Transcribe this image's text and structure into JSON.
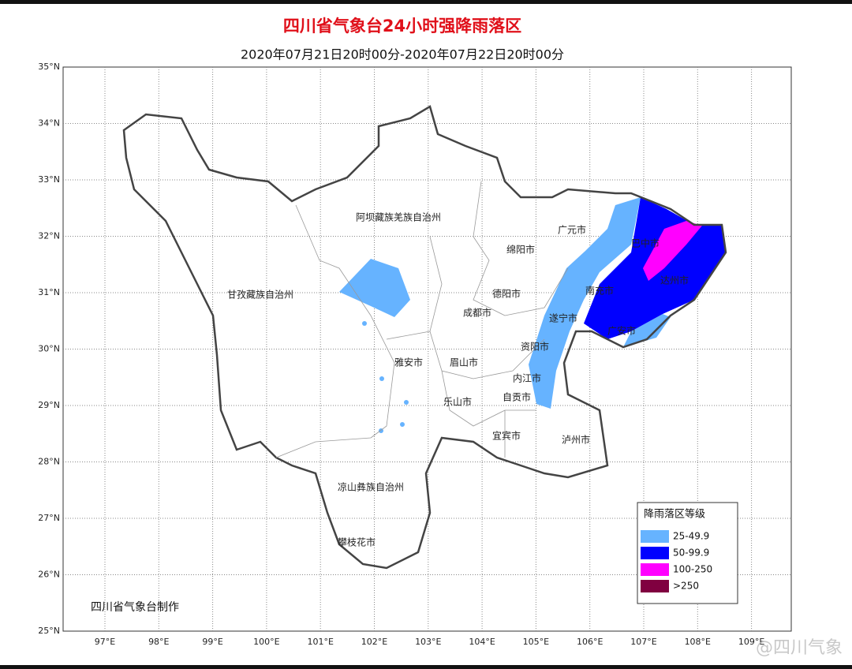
{
  "header": {
    "title": "四川省气象台24小时强降雨落区",
    "subtitle": "2020年07月21日20时00分-2020年07月22日20时00分"
  },
  "map": {
    "lat_labels": [
      "35°N",
      "34°N",
      "33°N",
      "32°N",
      "31°N",
      "30°N",
      "29°N",
      "28°N",
      "27°N",
      "26°N",
      "25°N"
    ],
    "lon_labels": [
      "97°E",
      "98°E",
      "99°E",
      "100°E",
      "101°E",
      "102°E",
      "103°E",
      "104°E",
      "105°E",
      "106°E",
      "107°E",
      "108°E",
      "109°E"
    ],
    "regions": [
      "阿坝藏族羌族自治州",
      "甘孜藏族自治州",
      "广元市",
      "绵阳市",
      "巴中市",
      "达州市",
      "南充市",
      "德阳市",
      "成都市",
      "遂宁市",
      "广安市",
      "资阳市",
      "雅安市",
      "眉山市",
      "内江市",
      "乐山市",
      "自贡市",
      "宜宾市",
      "泸州市",
      "凉山彝族自治州",
      "攀枝花市"
    ]
  },
  "legend": {
    "title": "降雨落区等级",
    "items": [
      {
        "label": "25-49.9",
        "color": "#66b3ff"
      },
      {
        "label": "50-99.9",
        "color": "#0000ff"
      },
      {
        "label": "100-250",
        "color": "#ff00ff"
      },
      {
        "label": ">250",
        "color": "#800040"
      }
    ]
  },
  "footer": {
    "credit": "四川省气象台制作",
    "watermark": "@四川气象"
  }
}
